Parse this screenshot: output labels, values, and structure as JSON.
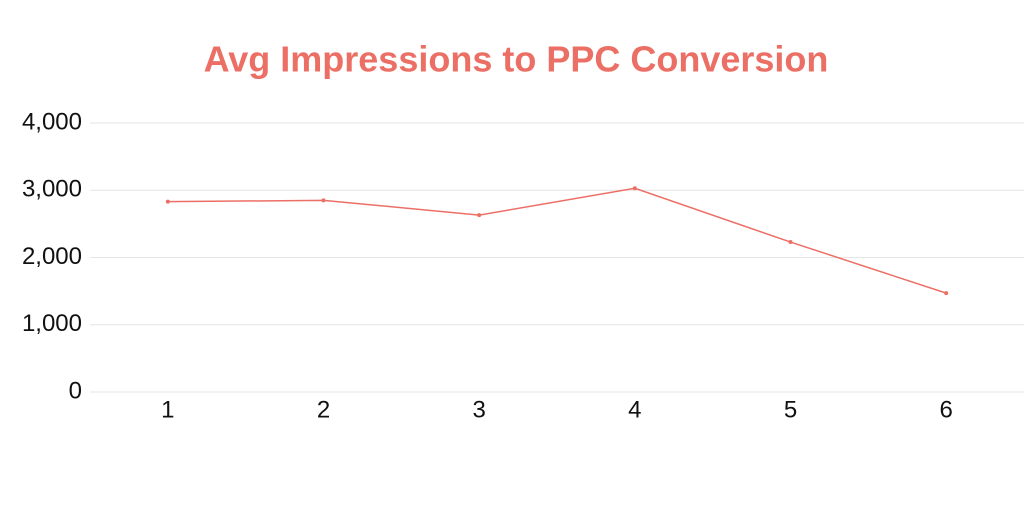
{
  "chart_data": {
    "type": "line",
    "title": "Avg Impressions to PPC Conversion",
    "categories": [
      "1",
      "2",
      "3",
      "4",
      "5",
      "6"
    ],
    "values": [
      2830,
      2850,
      2630,
      3030,
      2230,
      1470
    ],
    "color": "#ec6f66",
    "ylim": [
      0,
      4000
    ],
    "yticks": [
      0,
      {
        "value": 1000,
        "label": "1,000"
      },
      {
        "value": 2000,
        "label": "2,000"
      },
      {
        "value": 3000,
        "label": "3,000"
      },
      {
        "value": 4000,
        "label": "4,000"
      }
    ],
    "grid": true
  }
}
